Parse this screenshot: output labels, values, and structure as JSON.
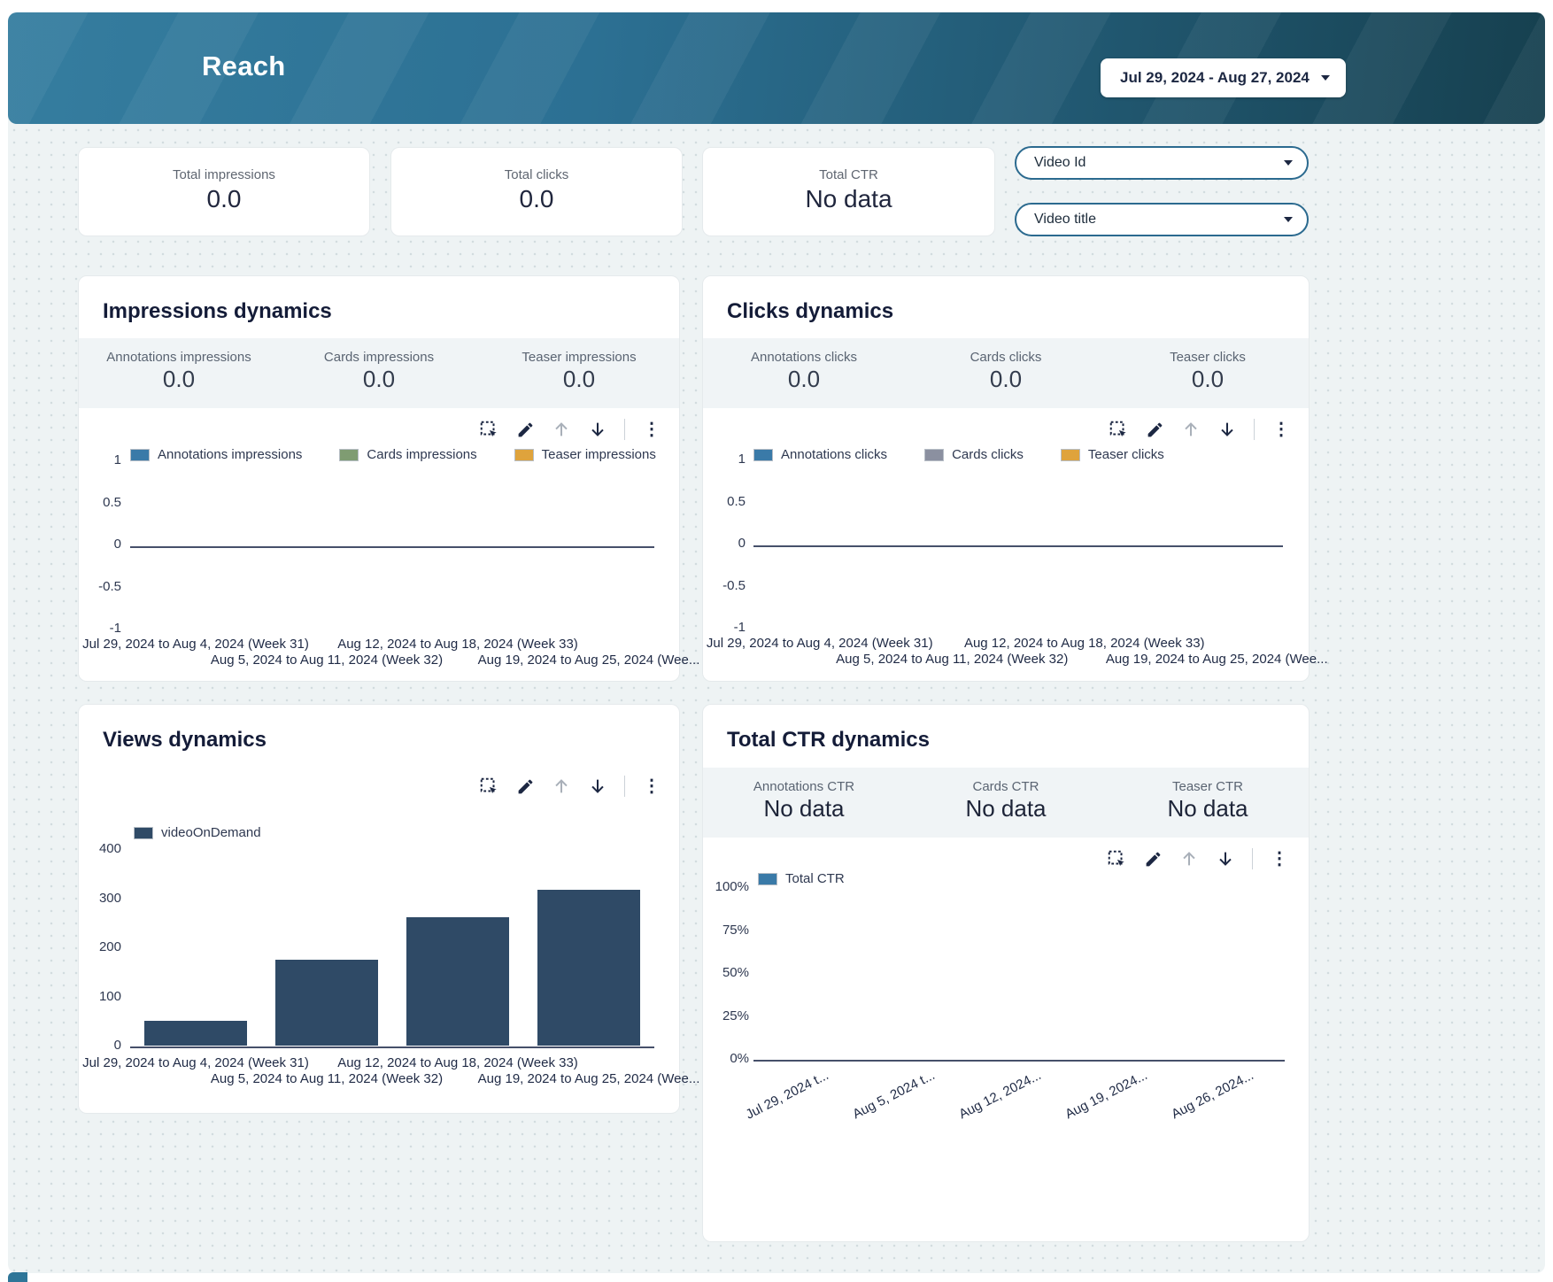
{
  "header": {
    "title": "Reach",
    "date_range": "Jul 29, 2024 - Aug 27, 2024"
  },
  "kpis": [
    {
      "label": "Total impressions",
      "value": "0.0"
    },
    {
      "label": "Total clicks",
      "value": "0.0"
    },
    {
      "label": "Total CTR",
      "value": "No data"
    }
  ],
  "filters": [
    {
      "label": "Video Id"
    },
    {
      "label": "Video title"
    }
  ],
  "panels": [
    {
      "title": "Impressions dynamics",
      "metrics": [
        {
          "label": "Annotations impressions",
          "value": "0.0"
        },
        {
          "label": "Cards impressions",
          "value": "0.0"
        },
        {
          "label": "Teaser impressions",
          "value": "0.0"
        }
      ]
    },
    {
      "title": "Clicks dynamics",
      "metrics": [
        {
          "label": "Annotations clicks",
          "value": "0.0"
        },
        {
          "label": "Cards clicks",
          "value": "0.0"
        },
        {
          "label": "Teaser clicks",
          "value": "0.0"
        }
      ]
    },
    {
      "title": "Views dynamics",
      "metrics": []
    },
    {
      "title": "Total CTR dynamics",
      "metrics": [
        {
          "label": "Annotations CTR",
          "value": "No data"
        },
        {
          "label": "Cards CTR",
          "value": "No data"
        },
        {
          "label": "Teaser CTR",
          "value": "No data"
        }
      ]
    }
  ],
  "chart_data": [
    {
      "type": "line",
      "title": "Impressions dynamics",
      "categories": [
        "Jul 29, 2024 to Aug 4, 2024 (Week 31)",
        "Aug 5, 2024 to Aug 11, 2024 (Week 32)",
        "Aug 12, 2024 to Aug 18, 2024 (Week 33)",
        "Aug 19, 2024 to Aug 25, 2024 (Wee..."
      ],
      "series": [
        {
          "name": "Annotations impressions",
          "color": "#3a7aa8",
          "values": [
            0,
            0,
            0,
            0
          ]
        },
        {
          "name": "Cards impressions",
          "color": "#7f9c72",
          "values": [
            0,
            0,
            0,
            0
          ]
        },
        {
          "name": "Teaser impressions",
          "color": "#dfa33c",
          "values": [
            0,
            0,
            0,
            0
          ]
        }
      ],
      "ylim": [
        -1,
        1
      ],
      "ytick_labels": [
        "1",
        "0.5",
        "0",
        "-0.5",
        "-1"
      ],
      "grid": false,
      "legend_position": "top"
    },
    {
      "type": "line",
      "title": "Clicks dynamics",
      "categories": [
        "Jul 29, 2024 to Aug 4, 2024 (Week 31)",
        "Aug 5, 2024 to Aug 11, 2024 (Week 32)",
        "Aug 12, 2024 to Aug 18, 2024 (Week 33)",
        "Aug 19, 2024 to Aug 25, 2024 (Wee..."
      ],
      "series": [
        {
          "name": "Annotations clicks",
          "color": "#3a7aa8",
          "values": [
            0,
            0,
            0,
            0
          ]
        },
        {
          "name": "Cards clicks",
          "color": "#8b90a0",
          "values": [
            0,
            0,
            0,
            0
          ]
        },
        {
          "name": "Teaser clicks",
          "color": "#dfa33c",
          "values": [
            0,
            0,
            0,
            0
          ]
        }
      ],
      "ylim": [
        -1,
        1
      ],
      "ytick_labels": [
        "1",
        "0.5",
        "0",
        "-0.5",
        "-1"
      ],
      "grid": false,
      "legend_position": "top"
    },
    {
      "type": "bar",
      "title": "Views dynamics",
      "categories": [
        "Jul 29, 2024 to Aug 4, 2024 (Week 31)",
        "Aug 5, 2024 to Aug 11, 2024 (Week 32)",
        "Aug 12, 2024 to Aug 18, 2024 (Week 33)",
        "Aug 19, 2024 to Aug 25, 2024 (Wee..."
      ],
      "series": [
        {
          "name": "videoOnDemand",
          "color": "#2f4a66",
          "values": [
            50,
            175,
            262,
            318
          ]
        }
      ],
      "ylim": [
        0,
        400
      ],
      "ytick_labels": [
        "400",
        "300",
        "200",
        "100",
        "0"
      ],
      "grid": false,
      "legend_position": "top"
    },
    {
      "type": "line",
      "title": "Total CTR dynamics",
      "categories": [
        "Jul 29, 2024 t...",
        "Aug 5, 2024 t...",
        "Aug 12, 2024...",
        "Aug 19, 2024...",
        "Aug 26, 2024..."
      ],
      "series": [
        {
          "name": "Total CTR",
          "color": "#3a7aa8",
          "values": [
            0,
            0,
            0,
            0,
            0
          ]
        }
      ],
      "ylim": [
        0,
        100
      ],
      "ytick_labels": [
        "100%",
        "75%",
        "50%",
        "25%",
        "0%"
      ],
      "grid": false,
      "legend_position": "top",
      "x_label_rotation": -27
    }
  ]
}
